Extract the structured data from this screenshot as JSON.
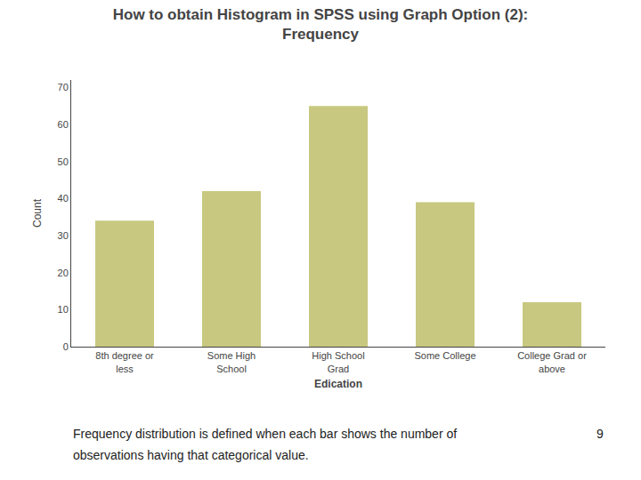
{
  "chart_data": {
    "type": "bar",
    "title": "How to obtain Histogram in SPSS using Graph Option (2):",
    "subtitle": "Frequency",
    "categories": [
      "8th degree or\nless",
      "Some High\nSchool",
      "High School\nGrad",
      "Some College",
      "College Grad or\nabove"
    ],
    "values": [
      34,
      42,
      65,
      39,
      12
    ],
    "color": "#C8C880",
    "xlabel": "Edication",
    "ylabel": "Count",
    "ylim": [
      0,
      72
    ],
    "yticks": [
      0,
      10,
      20,
      30,
      40,
      50,
      60,
      70
    ],
    "grid": false,
    "annotations": [
      "Frequency distribution is defined when each bar shows the number of",
      "observations having that categorical value.",
      "9"
    ]
  }
}
